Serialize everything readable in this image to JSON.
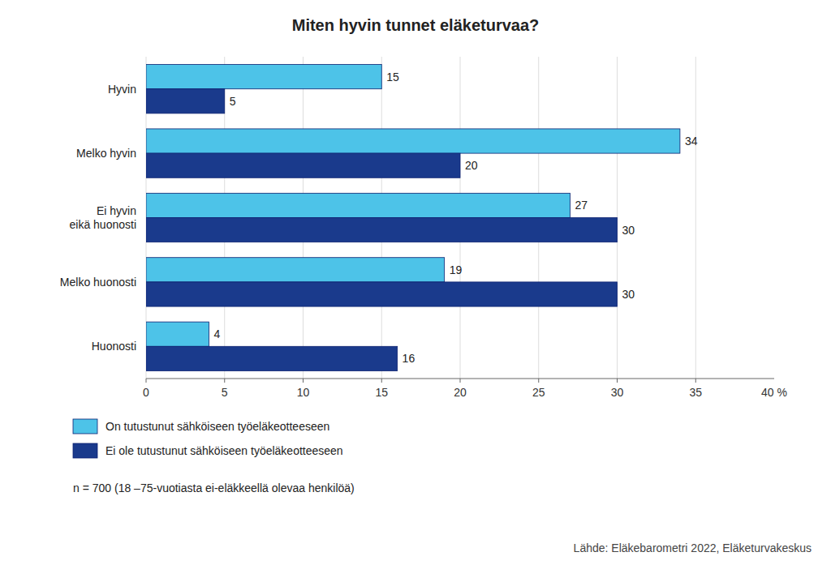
{
  "chart_data": {
    "type": "bar",
    "orientation": "horizontal",
    "title": "Miten hyvin tunnet eläketurvaa?",
    "categories": [
      "Hyvin",
      "Melko hyvin",
      "Ei hyvin\neikä huonosti",
      "Melko huonosti",
      "Huonosti"
    ],
    "series": [
      {
        "name": "On tutustunut sähköiseen työeläkeotteeseen",
        "color": "#4DC3E8",
        "values": [
          15,
          34,
          27,
          19,
          4
        ]
      },
      {
        "name": "Ei ole tutustunut sähköiseen työeläkeotteeseen",
        "color": "#1A3A8C",
        "values": [
          5,
          20,
          30,
          30,
          16
        ]
      }
    ],
    "xlim": [
      0,
      40
    ],
    "xticks": [
      0,
      5,
      10,
      15,
      20,
      25,
      30,
      35
    ],
    "annotations": [
      {
        "text": "40 %",
        "x": 40
      }
    ],
    "note": "n = 700 (18 –75-vuotiasta ei-eläkkeellä olevaa henkilöä)",
    "source": "Lähde: Eläkebarometri 2022, Eläketurvakeskus",
    "grid": true,
    "data_labels": true,
    "legend": "bottom"
  }
}
